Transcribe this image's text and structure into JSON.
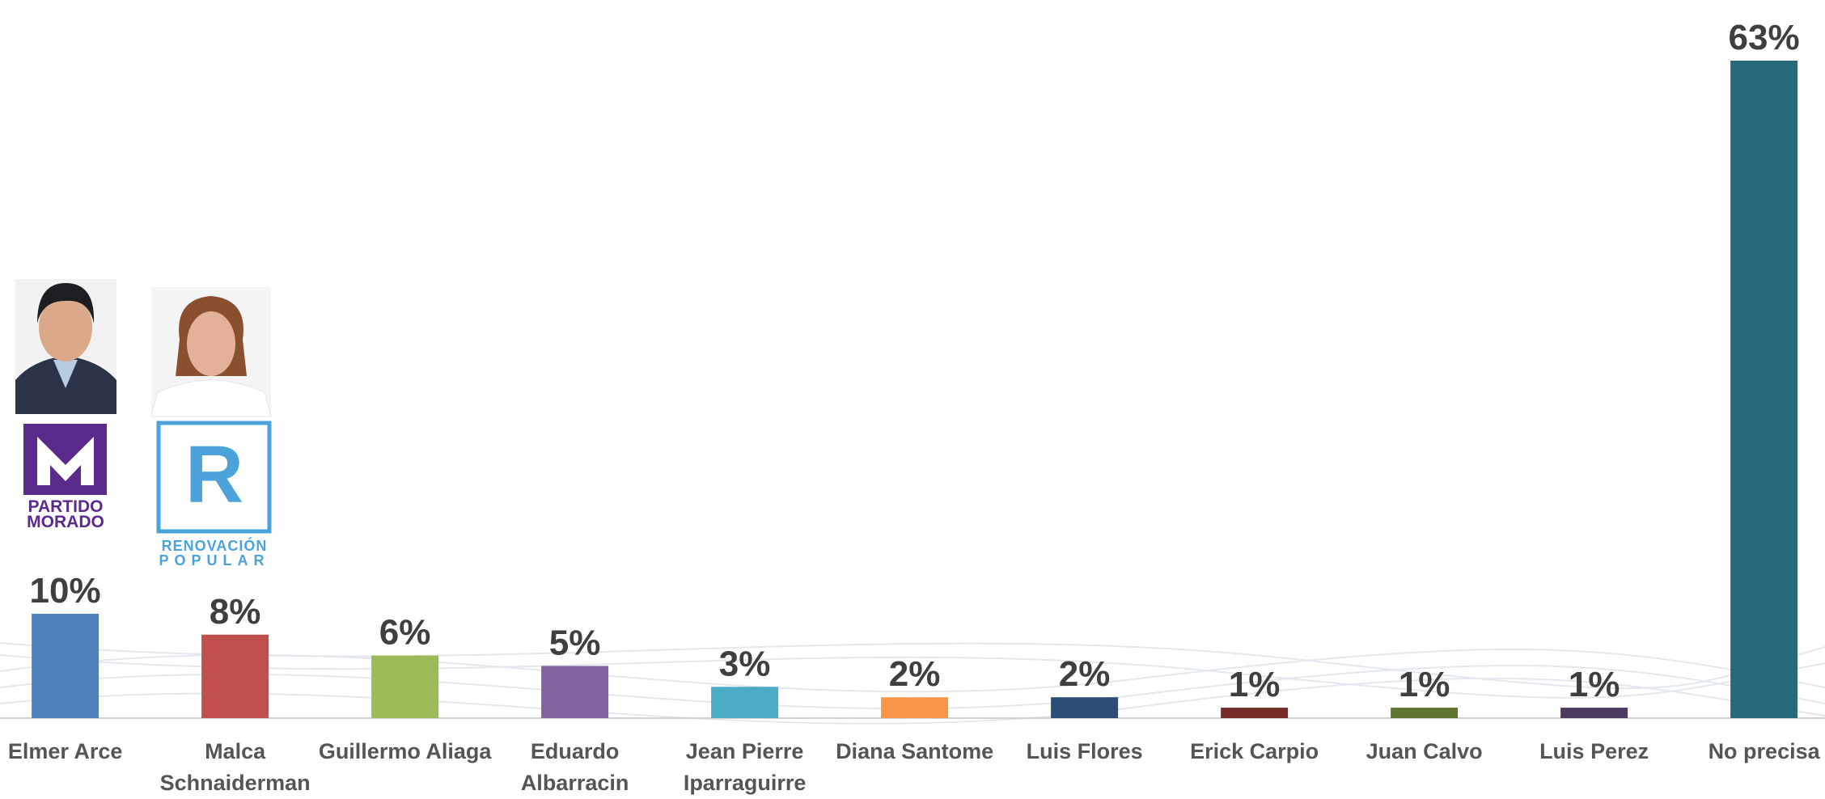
{
  "chart_data": {
    "type": "bar",
    "categories": [
      "Elmer Arce",
      "Malca Schnaiderman",
      "Guillermo Aliaga",
      "Eduardo Albarracin",
      "Jean Pierre Iparraguirre",
      "Diana Santome",
      "Luis Flores",
      "Erick Carpio",
      "Juan Calvo",
      "Luis Perez",
      "No precisa"
    ],
    "values": [
      10,
      8,
      6,
      5,
      3,
      2,
      2,
      1,
      1,
      1,
      63
    ],
    "value_labels": [
      "10%",
      "8%",
      "6%",
      "5%",
      "3%",
      "2%",
      "2%",
      "1%",
      "1%",
      "1%",
      "63%"
    ],
    "colors": [
      "#4f81bd",
      "#c0504d",
      "#9bbb59",
      "#8064a2",
      "#4bacc6",
      "#f79646",
      "#2c4d75",
      "#772c2a",
      "#5f7530",
      "#4d3b62",
      "#276a7c"
    ],
    "annotations": [
      "PARTIDO",
      "MORADO",
      "R",
      "RENOVACIÓN",
      "POPULAR"
    ]
  }
}
